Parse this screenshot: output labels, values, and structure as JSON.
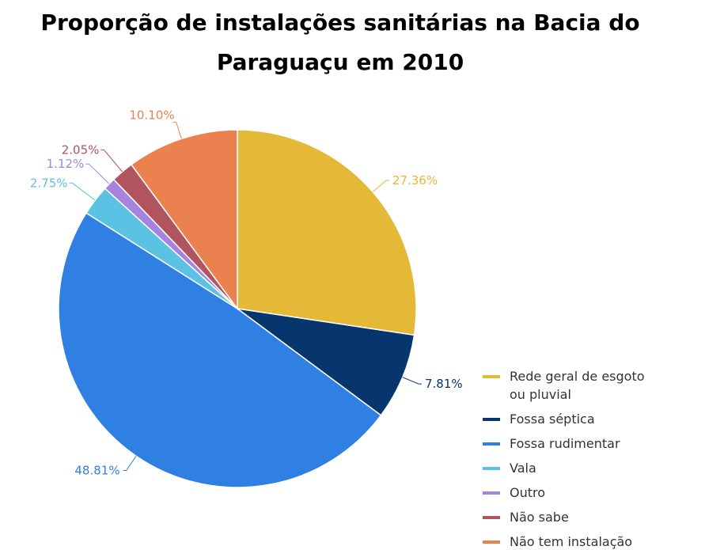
{
  "chart_data": {
    "type": "pie",
    "title": "Proporção de instalações sanitárias na Bacia do Paraguaçu em 2010",
    "legend_position": "bottom-right",
    "slices": [
      {
        "name": "Rede geral de esgoto ou pluvial",
        "legend_lines": [
          "Rede geral de esgoto",
          "ou pluvial"
        ],
        "value": 27.36,
        "label": "27.36%",
        "color": "#E3B937"
      },
      {
        "name": "Fossa séptica",
        "legend_lines": [
          "Fossa séptica"
        ],
        "value": 7.81,
        "label": "7.81%",
        "color": "#07356E"
      },
      {
        "name": "Fossa rudimentar",
        "legend_lines": [
          "Fossa rudimentar"
        ],
        "value": 48.81,
        "label": "48.81%",
        "color": "#3080E3"
      },
      {
        "name": "Vala",
        "legend_lines": [
          "Vala"
        ],
        "value": 2.75,
        "label": "2.75%",
        "color": "#5BC2E3"
      },
      {
        "name": "Outro",
        "legend_lines": [
          "Outro"
        ],
        "value": 1.12,
        "label": "1.12%",
        "color": "#A683DF"
      },
      {
        "name": "Não sabe",
        "legend_lines": [
          "Não sabe"
        ],
        "value": 2.05,
        "label": "2.05%",
        "color": "#B1545D"
      },
      {
        "name": "Não tem instalação",
        "legend_lines": [
          "Não tem instalação"
        ],
        "value": 10.1,
        "label": "10.10%",
        "color": "#EC8150"
      }
    ]
  }
}
